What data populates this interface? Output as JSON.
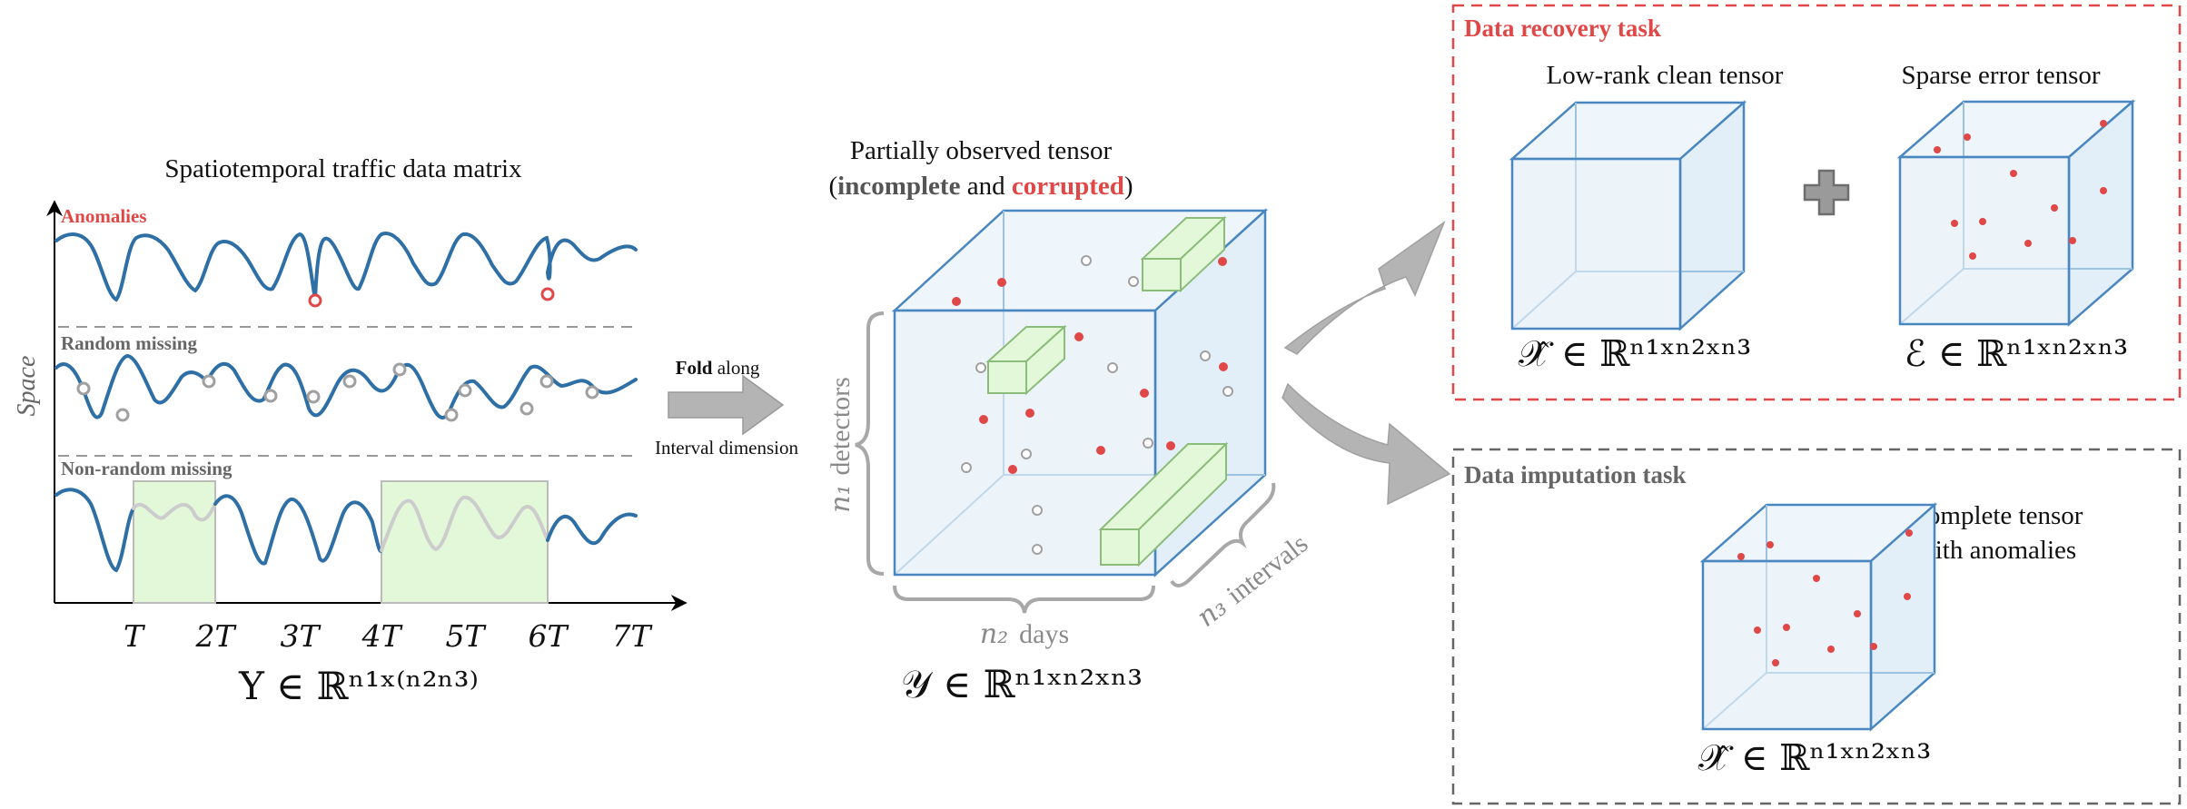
{
  "colors": {
    "accent_red": "#e04848",
    "line_blue": "#2e6fa5",
    "missing_gray": "#a0a0a0",
    "highlight_green": "#e2f8d8",
    "cube_edge": "#4a87c0",
    "cube_fill": "#e9f3fa",
    "arrow_gray": "#b4b4b4"
  },
  "matrix": {
    "title": "Spatiotemporal traffic data matrix",
    "y_label": "Space",
    "panels": [
      {
        "label": "Anomalies"
      },
      {
        "label": "Random missing"
      },
      {
        "label": "Non-random missing"
      }
    ],
    "x_ticks": [
      "T",
      "2T",
      "3T",
      "4T",
      "5T",
      "6T",
      "7T"
    ],
    "formula": "Y ∈ ℝⁿ¹ˣ⁽ⁿ²ⁿ³⁾"
  },
  "fold_arrow": {
    "word_bold": "Fold",
    "word_rest": " along",
    "line2": "Interval dimension",
    "icon": "right-arrow-icon"
  },
  "tensor": {
    "title_line1": "Partially observed tensor",
    "title_open": "(",
    "title_incomplete": "incomplete",
    "title_and": " and ",
    "title_corrupted": "corrupted",
    "title_close": ")",
    "axis_detectors_var": "n₁",
    "axis_detectors_word": "detectors",
    "axis_days_var": "n₂",
    "axis_days_word": "days",
    "axis_intervals_var": "n₃",
    "axis_intervals_word": "intervals",
    "formula": "𝒴 ∈ ℝⁿ¹ˣⁿ²ˣⁿ³"
  },
  "recovery": {
    "task_title": "Data recovery task",
    "low_rank_title": "Low-rank clean tensor",
    "sparse_title": "Sparse error tensor",
    "low_rank_formula": "𝒳̂ ∈ ℝⁿ¹ˣⁿ²ˣⁿ³",
    "sparse_formula": "ℰ ∈ ℝⁿ¹ˣⁿ²ˣⁿ³",
    "plus_icon": "plus-icon"
  },
  "imputation": {
    "task_title": "Data imputation task",
    "caption_line1": "Complete tensor",
    "caption_line2": "with anomalies",
    "formula": "𝒳̂ ∈ ℝⁿ¹ˣⁿ²ˣⁿ³"
  }
}
